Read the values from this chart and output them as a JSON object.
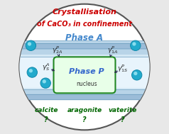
{
  "title_line1": "Crystallisation",
  "title_line2": "of CaCO₃ in confinement",
  "title_color": "#cc0000",
  "phase_a_label": "Phase A",
  "phase_a_color": "#4488cc",
  "phase_p_label": "Phase P",
  "phase_p_subtext": "nucleus",
  "phase_p_color": "#3366cc",
  "phase_p_box_fill": "#e8ffe8",
  "phase_p_box_edge": "#228822",
  "outer_facecolor": "#ffffff",
  "outer_edgecolor": "#555555",
  "band_dark": "#9bbcd8",
  "band_mid": "#b8d4e8",
  "band_light": "#d4e8f5",
  "band_very_light": "#e8f4fc",
  "dot_color": "#22aacc",
  "dot_edge": "#1188aa",
  "dot_highlight": "#88ddee",
  "arrow_color": "#222244",
  "gamma_color": "#222222",
  "bottom_labels": [
    "calcite",
    "aragonite",
    "vaterite"
  ],
  "bottom_color": "#006600",
  "bg_color": "#e8e8e8"
}
